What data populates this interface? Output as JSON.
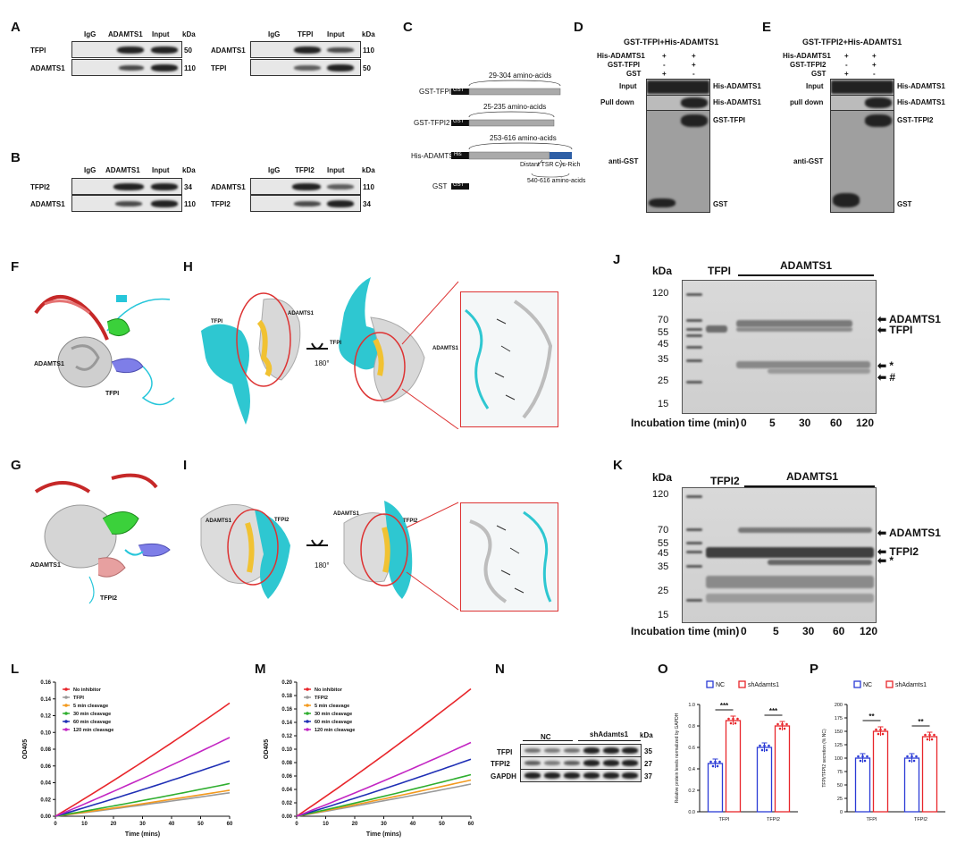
{
  "panel_letters": [
    "A",
    "B",
    "C",
    "D",
    "E",
    "F",
    "G",
    "H",
    "I",
    "J",
    "K",
    "L",
    "M",
    "N",
    "O",
    "P"
  ],
  "A": {
    "left": {
      "cols": [
        "IgG",
        "ADAMTS1",
        "Input"
      ],
      "kda_label": "kDa",
      "rows": [
        {
          "name": "TFPI",
          "kda": "50"
        },
        {
          "name": "ADAMTS1",
          "kda": "110"
        }
      ]
    },
    "right": {
      "cols": [
        "IgG",
        "TFPI",
        "Input"
      ],
      "kda_label": "kDa",
      "rows": [
        {
          "name": "ADAMTS1",
          "kda": "110"
        },
        {
          "name": "TFPI",
          "kda": "50"
        }
      ]
    }
  },
  "B": {
    "left": {
      "cols": [
        "IgG",
        "ADAMTS1",
        "Input"
      ],
      "kda_label": "kDa",
      "rows": [
        {
          "name": "TFPI2",
          "kda": "34"
        },
        {
          "name": "ADAMTS1",
          "kda": "110"
        }
      ]
    },
    "right": {
      "cols": [
        "IgG",
        "TFPI2",
        "Input"
      ],
      "kda_label": "kDa",
      "rows": [
        {
          "name": "ADAMTS1",
          "kda": "110"
        },
        {
          "name": "TFPI2",
          "kda": "34"
        }
      ]
    }
  },
  "C": {
    "constructs": [
      {
        "label": "GST-TFPI",
        "tag": "GST",
        "range": "29-304 amino-acids"
      },
      {
        "label": "GST-TFPI2",
        "tag": "GST",
        "range": "25-235 amino-acids"
      },
      {
        "label": "His-ADAMTS1",
        "tag": "His",
        "range": "253-616 amino-acids",
        "sub1": "Distant TSR",
        "sub2": "Cys-Rich",
        "sub3": "540-616 amino-acids"
      },
      {
        "label": "GST",
        "tag": "GST"
      }
    ]
  },
  "D": {
    "title": "GST-TFPI+His-ADAMTS1",
    "conditions": [
      {
        "name": "His-ADAMTS1",
        "vals": [
          "+",
          "+"
        ]
      },
      {
        "name": "GST-TFPI",
        "vals": [
          "-",
          "+"
        ]
      },
      {
        "name": "GST",
        "vals": [
          "+",
          "-"
        ]
      }
    ],
    "rows": {
      "input": "Input",
      "pull": "Pull down",
      "anti": "anti-GST"
    },
    "bands": [
      "His-ADAMTS1",
      "His-ADAMTS1",
      "GST-TFPI",
      "GST"
    ]
  },
  "E": {
    "title": "GST-TFPI2+His-ADAMTS1",
    "conditions": [
      {
        "name": "His-ADAMTS1",
        "vals": [
          "+",
          "+"
        ]
      },
      {
        "name": "GST-TFPI2",
        "vals": [
          "-",
          "+"
        ]
      },
      {
        "name": "GST",
        "vals": [
          "+",
          "-"
        ]
      }
    ],
    "rows": {
      "input": "Input",
      "pull": "pull down",
      "anti": "anti-GST"
    },
    "bands": [
      "His-ADAMTS1",
      "His-ADAMTS1",
      "GST-TFPI2",
      "GST"
    ]
  },
  "F": {
    "labels": {
      "adamts1": "ADAMTS1",
      "tfpi": "TFPI"
    }
  },
  "G": {
    "labels": {
      "adamts1": "ADAMTS1",
      "tfpi2": "TFPI2"
    }
  },
  "H": {
    "labels": {
      "tfpi": "TFPI",
      "adamts1": "ADAMTS1",
      "tfpi_b": "TFPI",
      "adamts1_b": "ADAMTS1",
      "rot": "180°"
    }
  },
  "I": {
    "labels": {
      "adamts1": "ADAMTS1",
      "tfpi2": "TFPI2",
      "adamts1_b": "ADAMTS1",
      "tfpi2_b": "TFPI2",
      "rot": "180°"
    }
  },
  "J": {
    "kda_label": "kDa",
    "markers": [
      "120",
      "70",
      "55",
      "45",
      "35",
      "25",
      "15"
    ],
    "lane_header_1": "TFPI",
    "lane_header_2": "ADAMTS1",
    "arrows": [
      "ADAMTS1",
      "TFPI",
      "*",
      "#"
    ],
    "time_label": "Incubation time (min)",
    "times": [
      "0",
      "5",
      "30",
      "60",
      "120"
    ]
  },
  "K": {
    "kda_label": "kDa",
    "markers": [
      "120",
      "70",
      "55",
      "45",
      "35",
      "25",
      "15"
    ],
    "lane_header_1": "TFPI2",
    "lane_header_2": "ADAMTS1",
    "arrows": [
      "ADAMTS1",
      "TFPI2",
      "*"
    ],
    "time_label": "Incubation time (min)",
    "times": [
      "0",
      "5",
      "30",
      "60",
      "120"
    ]
  },
  "chart_data": [
    {
      "panel": "L",
      "type": "line",
      "xlabel": "Time (mins)",
      "ylabel": "OD405",
      "xlim": [
        0,
        60
      ],
      "ylim": [
        0,
        0.16
      ],
      "xticks": [
        "0",
        "10",
        "20",
        "30",
        "40",
        "50",
        "60"
      ],
      "yticks": [
        "0.00",
        "0.02",
        "0.04",
        "0.06",
        "0.08",
        "0.10",
        "0.12",
        "0.14",
        "0.16"
      ],
      "legend_position": "top-left",
      "series": [
        {
          "name": "No inhibitor",
          "color": "#e8262b",
          "x": [
            0,
            60
          ],
          "y": [
            0,
            0.135
          ]
        },
        {
          "name": "TFPI",
          "color": "#9a9a9a",
          "x": [
            0,
            60
          ],
          "y": [
            0,
            0.028
          ]
        },
        {
          "name": "5 min cleavage",
          "color": "#f39a1f",
          "x": [
            0,
            60
          ],
          "y": [
            0,
            0.031
          ]
        },
        {
          "name": "30 min cleavage",
          "color": "#2fae2f",
          "x": [
            0,
            60
          ],
          "y": [
            0,
            0.039
          ]
        },
        {
          "name": "60 min cleavage",
          "color": "#1f2fb5",
          "x": [
            0,
            60
          ],
          "y": [
            0,
            0.066
          ]
        },
        {
          "name": "120 min cleavage",
          "color": "#c326c3",
          "x": [
            0,
            60
          ],
          "y": [
            0,
            0.094
          ]
        }
      ]
    },
    {
      "panel": "M",
      "type": "line",
      "xlabel": "Time (mins)",
      "ylabel": "OD405",
      "xlim": [
        0,
        60
      ],
      "ylim": [
        0,
        0.2
      ],
      "xticks": [
        "0",
        "10",
        "20",
        "30",
        "40",
        "50",
        "60"
      ],
      "yticks": [
        "0.00",
        "0.02",
        "0.04",
        "0.06",
        "0.08",
        "0.10",
        "0.12",
        "0.14",
        "0.16",
        "0.18",
        "0.20"
      ],
      "legend_position": "top-left",
      "series": [
        {
          "name": "No inhibitor",
          "color": "#e8262b",
          "x": [
            0,
            60
          ],
          "y": [
            0,
            0.19
          ]
        },
        {
          "name": "TFPI2",
          "color": "#9a9a9a",
          "x": [
            0,
            60
          ],
          "y": [
            0,
            0.048
          ]
        },
        {
          "name": "5 min cleavage",
          "color": "#f39a1f",
          "x": [
            0,
            60
          ],
          "y": [
            0,
            0.054
          ]
        },
        {
          "name": "30 min cleavage",
          "color": "#2fae2f",
          "x": [
            0,
            60
          ],
          "y": [
            0,
            0.062
          ]
        },
        {
          "name": "60 min cleavage",
          "color": "#1f2fb5",
          "x": [
            0,
            60
          ],
          "y": [
            0,
            0.085
          ]
        },
        {
          "name": "120 min cleavage",
          "color": "#c326c3",
          "x": [
            0,
            60
          ],
          "y": [
            0,
            0.11
          ]
        }
      ]
    },
    {
      "panel": "O",
      "type": "bar",
      "ylabel": "Relative protein levels normalized by GAPDH",
      "categories": [
        "TFPI",
        "TFPI2"
      ],
      "ylim": [
        0,
        1.0
      ],
      "yticks": [
        "0.0",
        "0.2",
        "0.4",
        "0.6",
        "0.8",
        "1.0"
      ],
      "legend": [
        "NC",
        "shAdamts1"
      ],
      "sig": [
        "***",
        "***"
      ],
      "series": [
        {
          "name": "NC",
          "color": "#2b3bd6",
          "values": [
            0.45,
            0.6
          ]
        },
        {
          "name": "shAdamts1",
          "color": "#e8262b",
          "values": [
            0.85,
            0.8
          ]
        }
      ]
    },
    {
      "panel": "P",
      "type": "bar",
      "ylabel": "TFPI/TFPI2 secretion (% NC)",
      "categories": [
        "TFPI",
        "TFPI2"
      ],
      "ylim": [
        0,
        200
      ],
      "yticks": [
        "0",
        "25",
        "50",
        "75",
        "100",
        "125",
        "150",
        "175",
        "200"
      ],
      "legend": [
        "NC",
        "shAdamts1"
      ],
      "sig": [
        "**",
        "**"
      ],
      "series": [
        {
          "name": "NC",
          "color": "#2b3bd6",
          "values": [
            100,
            100
          ]
        },
        {
          "name": "shAdamts1",
          "color": "#e8262b",
          "values": [
            150,
            140
          ]
        }
      ]
    }
  ],
  "N": {
    "groups": [
      "NC",
      "shAdamts1"
    ],
    "kda_label": "kDa",
    "rows": [
      {
        "name": "TFPI",
        "kda": "35"
      },
      {
        "name": "TFPI2",
        "kda": "27"
      },
      {
        "name": "GAPDH",
        "kda": "37"
      }
    ]
  }
}
